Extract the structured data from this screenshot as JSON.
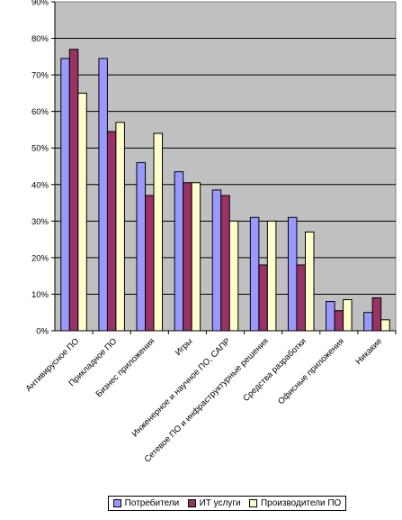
{
  "chart_data": {
    "type": "bar",
    "title": "",
    "xlabel": "",
    "ylabel": "",
    "ylim": [
      0,
      90
    ],
    "yticks": [
      "0%",
      "10%",
      "20%",
      "30%",
      "40%",
      "50%",
      "60%",
      "70%",
      "80%",
      "90%"
    ],
    "grid": true,
    "legend_position": "bottom",
    "plot_background": "#c0c0c0",
    "categories": [
      "Антивирусное ПО",
      "Прикладное ПО",
      "Бизнес приложения",
      "Игры",
      "Инженерное и научное ПО, САПР",
      "Сетевое ПО и инфраструктурные решения",
      "Средства разработки",
      "Офисные приложения",
      "Никакие"
    ],
    "series": [
      {
        "name": "Потребители",
        "color": "#9999ff",
        "values": [
          74.5,
          74.5,
          46,
          43.5,
          38.5,
          31,
          31,
          8,
          5
        ]
      },
      {
        "name": "ИТ услуги",
        "color": "#993366",
        "values": [
          77,
          54.5,
          37,
          40.5,
          37,
          18,
          18,
          5.5,
          9
        ]
      },
      {
        "name": "Производители ПО",
        "color": "#ffffcc",
        "values": [
          65,
          57,
          54,
          40.5,
          30,
          30,
          27,
          8.5,
          3
        ]
      }
    ]
  }
}
